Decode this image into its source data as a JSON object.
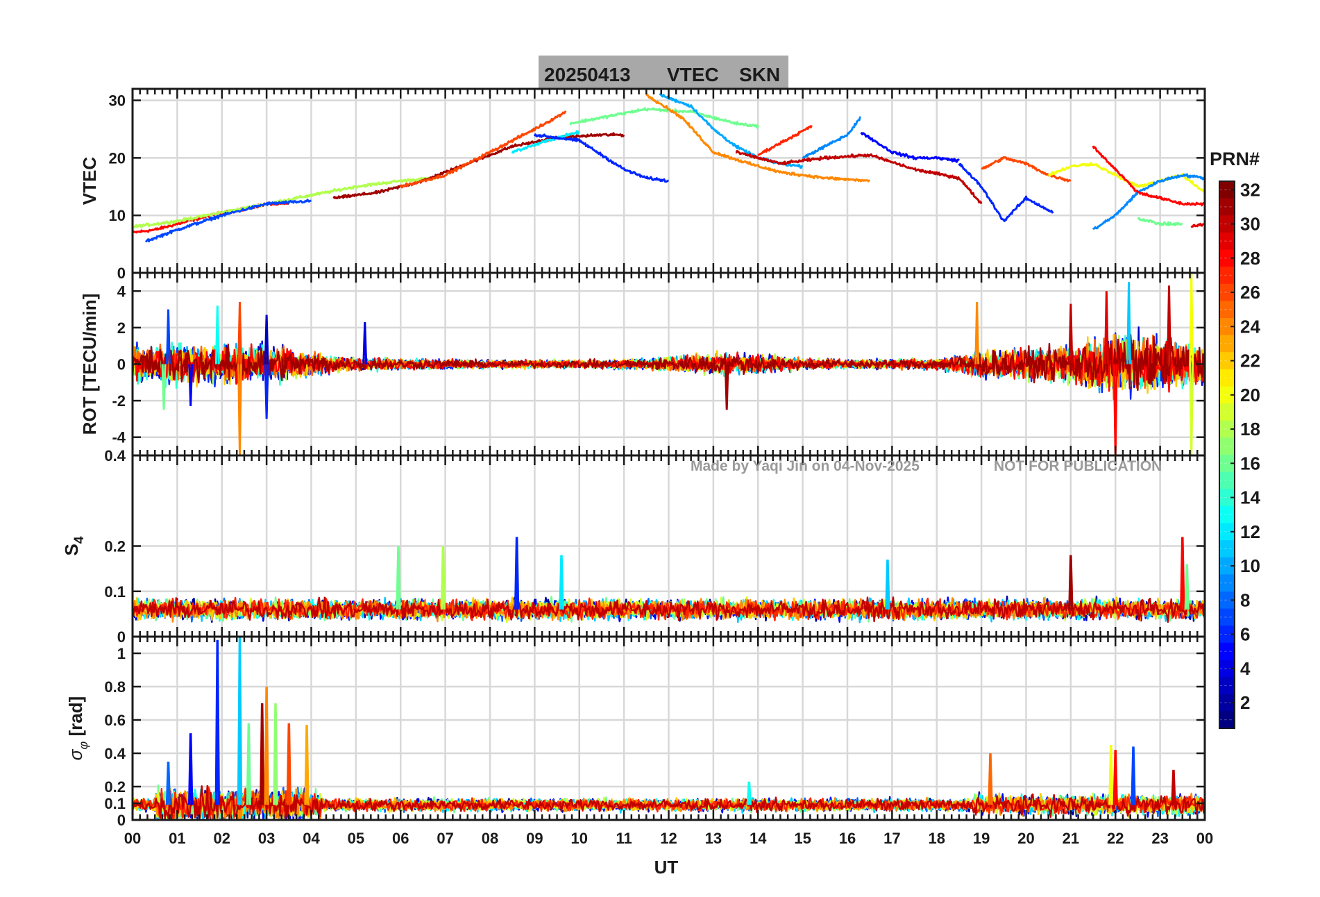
{
  "title_box": {
    "date": "20250413",
    "quantity": "VTEC",
    "station": "SKN"
  },
  "watermark": {
    "author": "Made by Yaqi Jin on 04-Nov-2025",
    "notice": "NOT FOR PUBLICATION"
  },
  "colorbar": {
    "label": "PRN#",
    "ticks": [
      "2",
      "4",
      "6",
      "8",
      "10",
      "12",
      "14",
      "16",
      "18",
      "20",
      "22",
      "24",
      "26",
      "28",
      "30",
      "32"
    ],
    "min": 1,
    "max": 32
  },
  "xaxis": {
    "label": "UT",
    "ticks": [
      "00",
      "01",
      "02",
      "03",
      "04",
      "05",
      "06",
      "07",
      "08",
      "09",
      "10",
      "11",
      "12",
      "13",
      "14",
      "15",
      "16",
      "17",
      "18",
      "19",
      "20",
      "21",
      "22",
      "23",
      "00"
    ],
    "range": [
      0,
      24
    ]
  },
  "chart_data": [
    {
      "type": "line",
      "panel": "vtec",
      "ylabel": "VTEC",
      "ylim": [
        0,
        32
      ],
      "yticks": [
        "0",
        "10",
        "20",
        "30"
      ],
      "ytick_values": [
        0,
        10,
        20,
        30
      ],
      "grid": true,
      "description_of_series": "one trace per visible PRN arc, color = PRN",
      "series": [
        {
          "prn": 28,
          "x": [
            0.0,
            0.5,
            1.0,
            1.5,
            2.0,
            2.5,
            3.0,
            3.5
          ],
          "y": [
            7,
            7.5,
            8.5,
            9.5,
            10.5,
            11,
            12,
            12
          ]
        },
        {
          "prn": 18,
          "x": [
            0.0,
            1.0,
            2.0,
            3.0,
            4.0,
            5.0,
            6.0,
            6.8
          ],
          "y": [
            8,
            9,
            10.5,
            12,
            13.5,
            15,
            16,
            16.5
          ]
        },
        {
          "prn": 7,
          "x": [
            0.3,
            1.0,
            2.0,
            3.0,
            4.0
          ],
          "y": [
            5.5,
            7.5,
            10,
            12,
            12.5
          ]
        },
        {
          "prn": 31,
          "x": [
            4.5,
            5.5,
            6.5,
            7.5,
            8.5,
            9.5,
            10.5,
            11.0
          ],
          "y": [
            13,
            14,
            16,
            19,
            22,
            23.5,
            24,
            24
          ]
        },
        {
          "prn": 26,
          "x": [
            6.0,
            7.0,
            8.0,
            9.0,
            9.7
          ],
          "y": [
            15,
            17,
            21,
            25,
            28
          ]
        },
        {
          "prn": 16,
          "x": [
            9.8,
            10.5,
            11.5,
            12.5,
            13.5,
            14.0
          ],
          "y": [
            26,
            27,
            28.5,
            28,
            26,
            25.5
          ]
        },
        {
          "prn": 12,
          "x": [
            8.5,
            9.5,
            10.0
          ],
          "y": [
            21,
            23.5,
            24.5
          ]
        },
        {
          "prn": 10,
          "x": [
            11.8,
            12.5,
            13.0,
            13.5,
            14.0,
            14.5,
            15.0
          ],
          "y": [
            31,
            29,
            25,
            22,
            20,
            19,
            18.5
          ]
        },
        {
          "prn": 6,
          "x": [
            9.0,
            10.0,
            11.0,
            11.5,
            12.0
          ],
          "y": [
            24,
            23,
            18,
            16.5,
            16
          ]
        },
        {
          "prn": 24,
          "x": [
            11.5,
            12.3,
            13.0,
            13.8,
            14.5,
            15.5,
            16.5
          ],
          "y": [
            31,
            27,
            21,
            19,
            17.5,
            16.5,
            16
          ]
        },
        {
          "prn": 30,
          "x": [
            13.5,
            14.5,
            15.5,
            16.5,
            17.5,
            18.5,
            19.0
          ],
          "y": [
            21,
            19,
            20,
            20.5,
            18,
            16.5,
            12
          ]
        },
        {
          "prn": 5,
          "x": [
            16.3,
            17.0,
            17.5,
            18.0,
            18.5
          ],
          "y": [
            24.5,
            21,
            20,
            20,
            19.5
          ]
        },
        {
          "prn": 9,
          "x": [
            15.0,
            16.0,
            16.3
          ],
          "y": [
            20,
            24,
            27
          ]
        },
        {
          "prn": 27,
          "x": [
            14.0,
            14.6,
            15.2
          ],
          "y": [
            20.5,
            23,
            25.5
          ]
        },
        {
          "prn": 6,
          "x": [
            18.5,
            19.0,
            19.5,
            20.0,
            20.6
          ],
          "y": [
            19,
            15,
            9,
            13,
            10.5
          ]
        },
        {
          "prn": 26,
          "x": [
            19.0,
            19.5,
            20.0,
            20.5,
            21.0
          ],
          "y": [
            18,
            20,
            19,
            17,
            16
          ]
        },
        {
          "prn": 20,
          "x": [
            20.5,
            21.0,
            21.5,
            22.0,
            22.5,
            23.0,
            23.5,
            24.0
          ],
          "y": [
            17,
            18.5,
            19,
            17,
            15,
            16,
            17,
            14
          ]
        },
        {
          "prn": 16,
          "x": [
            22.5,
            23.0,
            23.5
          ],
          "y": [
            9.5,
            8.5,
            8.5
          ]
        },
        {
          "prn": 9,
          "x": [
            21.5,
            22.0,
            22.5,
            23.0,
            23.5,
            24.0
          ],
          "y": [
            7.5,
            10,
            14,
            16,
            17,
            16.5
          ]
        },
        {
          "prn": 28,
          "x": [
            21.5,
            22.0,
            22.5,
            23.0,
            23.5,
            24.0
          ],
          "y": [
            22,
            18,
            14,
            13,
            12,
            12
          ]
        },
        {
          "prn": 29,
          "x": [
            23.7,
            24.0
          ],
          "y": [
            8,
            8.5
          ]
        }
      ]
    },
    {
      "type": "line",
      "panel": "rot",
      "ylabel": "ROT [TECU/min]",
      "ylim": [
        -5,
        5
      ],
      "yticks": [
        "-4",
        "-2",
        "0",
        "2",
        "4"
      ],
      "ytick_values": [
        -4,
        -2,
        0,
        2,
        4
      ],
      "grid": true,
      "noise_profile": {
        "x": [
          0,
          1,
          2,
          3,
          4,
          5,
          6,
          7,
          8,
          9,
          10,
          11,
          12,
          13,
          14,
          15,
          16,
          17,
          18,
          19,
          20,
          21,
          22,
          23,
          24
        ],
        "amplitude": [
          1.2,
          1.6,
          1.4,
          1.4,
          0.8,
          0.5,
          0.4,
          0.35,
          0.3,
          0.3,
          0.3,
          0.35,
          0.5,
          0.8,
          0.7,
          0.4,
          0.35,
          0.35,
          0.4,
          1.0,
          1.1,
          1.4,
          2.2,
          2.0,
          1.4
        ]
      },
      "spikes": [
        {
          "x": 0.7,
          "y": -2.5,
          "prn": 16
        },
        {
          "x": 0.8,
          "y": 3.0,
          "prn": 7
        },
        {
          "x": 1.3,
          "y": -2.3,
          "prn": 5
        },
        {
          "x": 1.9,
          "y": 3.2,
          "prn": 13
        },
        {
          "x": 2.4,
          "y": -5.0,
          "prn": 24
        },
        {
          "x": 2.4,
          "y": 3.4,
          "prn": 26
        },
        {
          "x": 3.0,
          "y": -3.0,
          "prn": 6
        },
        {
          "x": 3.0,
          "y": 2.7,
          "prn": 3
        },
        {
          "x": 5.2,
          "y": 2.3,
          "prn": 4
        },
        {
          "x": 13.3,
          "y": -2.5,
          "prn": 31
        },
        {
          "x": 18.9,
          "y": 3.4,
          "prn": 24
        },
        {
          "x": 21.0,
          "y": 3.3,
          "prn": 30
        },
        {
          "x": 21.8,
          "y": 4.0,
          "prn": 29
        },
        {
          "x": 22.0,
          "y": -5.0,
          "prn": 28
        },
        {
          "x": 22.3,
          "y": 4.5,
          "prn": 11
        },
        {
          "x": 23.2,
          "y": 4.3,
          "prn": 30
        },
        {
          "x": 23.7,
          "y": -5.0,
          "prn": 19
        },
        {
          "x": 23.7,
          "y": 5.0,
          "prn": 20
        }
      ]
    },
    {
      "type": "line",
      "panel": "s4",
      "ylabel": "S4",
      "ylim": [
        0,
        0.4
      ],
      "yticks": [
        "0",
        "0.1",
        "0.2",
        "0.4"
      ],
      "ytick_values": [
        0,
        0.1,
        0.2,
        0.4
      ],
      "grid": true,
      "baseline_range": [
        0.03,
        0.09
      ],
      "spikes": [
        {
          "x": 5.95,
          "y": 0.2,
          "prn": 16
        },
        {
          "x": 6.95,
          "y": 0.2,
          "prn": 18
        },
        {
          "x": 8.6,
          "y": 0.22,
          "prn": 6
        },
        {
          "x": 9.6,
          "y": 0.18,
          "prn": 12
        },
        {
          "x": 16.9,
          "y": 0.17,
          "prn": 11
        },
        {
          "x": 21.0,
          "y": 0.18,
          "prn": 31
        },
        {
          "x": 23.5,
          "y": 0.22,
          "prn": 28
        },
        {
          "x": 23.6,
          "y": 0.16,
          "prn": 16
        }
      ]
    },
    {
      "type": "line",
      "panel": "sigma_phi",
      "ylabel": "σφ [rad]",
      "ylim": [
        0,
        1.1
      ],
      "yticks": [
        "0",
        "0.1",
        "0.2",
        "0.4",
        "0.6",
        "0.8",
        "1"
      ],
      "ytick_values": [
        0,
        0.1,
        0.2,
        0.4,
        0.6,
        0.8,
        1.0
      ],
      "grid": true,
      "baseline_range": [
        0.04,
        0.14
      ],
      "spikes": [
        {
          "x": 0.8,
          "y": 0.35,
          "prn": 8
        },
        {
          "x": 1.3,
          "y": 0.52,
          "prn": 5
        },
        {
          "x": 1.9,
          "y": 1.08,
          "prn": 6
        },
        {
          "x": 2.4,
          "y": 1.1,
          "prn": 11
        },
        {
          "x": 2.6,
          "y": 0.58,
          "prn": 16
        },
        {
          "x": 2.9,
          "y": 0.7,
          "prn": 31
        },
        {
          "x": 3.0,
          "y": 0.8,
          "prn": 24
        },
        {
          "x": 3.2,
          "y": 0.7,
          "prn": 17
        },
        {
          "x": 3.5,
          "y": 0.58,
          "prn": 26
        },
        {
          "x": 3.9,
          "y": 0.57,
          "prn": 23
        },
        {
          "x": 13.8,
          "y": 0.23,
          "prn": 13
        },
        {
          "x": 19.2,
          "y": 0.4,
          "prn": 25
        },
        {
          "x": 21.9,
          "y": 0.45,
          "prn": 20
        },
        {
          "x": 22.0,
          "y": 0.42,
          "prn": 28
        },
        {
          "x": 22.4,
          "y": 0.44,
          "prn": 7
        },
        {
          "x": 23.3,
          "y": 0.3,
          "prn": 30
        }
      ]
    }
  ]
}
